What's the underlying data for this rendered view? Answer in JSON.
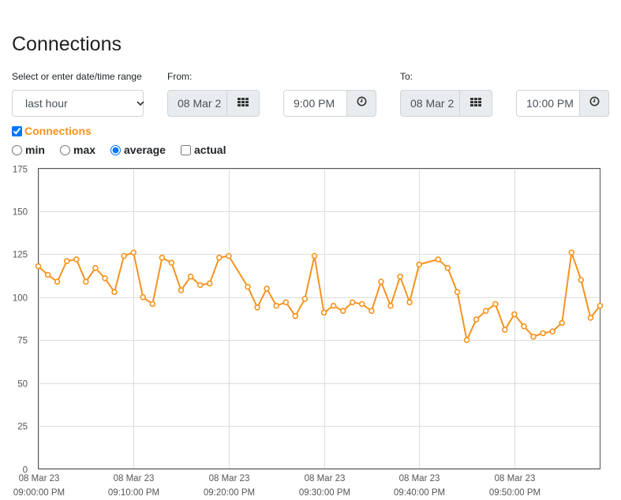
{
  "page": {
    "title": "Connections"
  },
  "range": {
    "label": "Select or enter date/time range",
    "selected": "last hour"
  },
  "from": {
    "label": "From:",
    "date": "08 Mar 2",
    "time": "9:00 PM"
  },
  "to": {
    "label": "To:",
    "date": "08 Mar 2",
    "time": "10:00 PM"
  },
  "icons": {
    "calendar": "calendar-grid-icon",
    "clock": "clock-icon"
  },
  "series_toggle": {
    "label": "Connections",
    "checked": true,
    "color": "#f7931e"
  },
  "aggregations": [
    {
      "label": "min",
      "selected": false,
      "type": "radio"
    },
    {
      "label": "max",
      "selected": false,
      "type": "radio"
    },
    {
      "label": "average",
      "selected": true,
      "type": "radio"
    },
    {
      "label": "actual",
      "selected": false,
      "type": "checkbox"
    }
  ],
  "chart_data": {
    "type": "line",
    "ylim": [
      0,
      175
    ],
    "yticks": [
      0,
      25,
      50,
      75,
      100,
      125,
      150,
      175
    ],
    "xlim": [
      0,
      3540
    ],
    "xticks": [
      {
        "t": 0,
        "date": "08 Mar 23",
        "time": "09:00:00 PM"
      },
      {
        "t": 600,
        "date": "08 Mar 23",
        "time": "09:10:00 PM"
      },
      {
        "t": 1200,
        "date": "08 Mar 23",
        "time": "09:20:00 PM"
      },
      {
        "t": 1800,
        "date": "08 Mar 23",
        "time": "09:30:00 PM"
      },
      {
        "t": 2400,
        "date": "08 Mar 23",
        "time": "09:40:00 PM"
      },
      {
        "t": 3000,
        "date": "08 Mar 23",
        "time": "09:50:00 PM"
      }
    ],
    "grid": true,
    "series": [
      {
        "name": "Connections",
        "color": "#f7931e",
        "points": [
          [
            0,
            118
          ],
          [
            60,
            113
          ],
          [
            120,
            109
          ],
          [
            180,
            121
          ],
          [
            240,
            122
          ],
          [
            300,
            109
          ],
          [
            360,
            117
          ],
          [
            420,
            111
          ],
          [
            480,
            103
          ],
          [
            540,
            124
          ],
          [
            600,
            126
          ],
          [
            660,
            100
          ],
          [
            720,
            96
          ],
          [
            780,
            123
          ],
          [
            840,
            120
          ],
          [
            900,
            104
          ],
          [
            960,
            112
          ],
          [
            1020,
            107
          ],
          [
            1080,
            108
          ],
          [
            1140,
            123
          ],
          [
            1200,
            124
          ],
          [
            1320,
            106
          ],
          [
            1380,
            94
          ],
          [
            1440,
            105
          ],
          [
            1500,
            95
          ],
          [
            1560,
            97
          ],
          [
            1620,
            89
          ],
          [
            1680,
            99
          ],
          [
            1740,
            124
          ],
          [
            1800,
            91
          ],
          [
            1860,
            95
          ],
          [
            1920,
            92
          ],
          [
            1980,
            97
          ],
          [
            2040,
            96
          ],
          [
            2100,
            92
          ],
          [
            2160,
            109
          ],
          [
            2220,
            95
          ],
          [
            2280,
            112
          ],
          [
            2340,
            97
          ],
          [
            2400,
            119
          ],
          [
            2520,
            122
          ],
          [
            2580,
            117
          ],
          [
            2640,
            103
          ],
          [
            2700,
            75
          ],
          [
            2760,
            87
          ],
          [
            2820,
            92
          ],
          [
            2880,
            96
          ],
          [
            2940,
            81
          ],
          [
            3000,
            90
          ],
          [
            3060,
            83
          ],
          [
            3120,
            77
          ],
          [
            3180,
            79
          ],
          [
            3240,
            80
          ],
          [
            3300,
            85
          ],
          [
            3360,
            126
          ],
          [
            3420,
            110
          ],
          [
            3480,
            88
          ],
          [
            3540,
            95
          ]
        ]
      }
    ]
  }
}
